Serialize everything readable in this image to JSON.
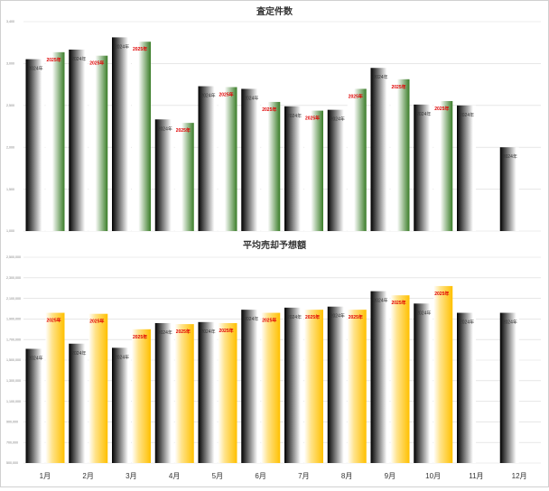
{
  "chart_data": [
    {
      "type": "bar",
      "title": "査定件数",
      "categories": [
        "1月",
        "2月",
        "3月",
        "4月",
        "5月",
        "6月",
        "7月",
        "8月",
        "9月",
        "10月",
        "11月",
        "12月"
      ],
      "yticks": [
        "3,400",
        "3,000",
        "2,500",
        "2,000",
        "1,500",
        "1,000"
      ],
      "ylim": [
        1000,
        3400
      ],
      "grid": true,
      "series": [
        {
          "name": "2024年",
          "color": "#000000",
          "values": [
            2970,
            3080,
            3220,
            2280,
            2660,
            2630,
            2430,
            2390,
            2870,
            2450,
            2440,
            1960
          ],
          "labels": [
            "2024年",
            "2024年",
            "2024年",
            "2024年",
            "2024年",
            "2024年",
            "2024年",
            "2024年",
            "2024年",
            "2024年",
            "2024年",
            "2024年"
          ]
        },
        {
          "name": "2025年",
          "color": "#3a7d28",
          "values": [
            3050,
            3010,
            3170,
            2240,
            2650,
            2480,
            2380,
            2630,
            2740,
            2490,
            null,
            null
          ],
          "labels": [
            "2025年",
            "2025年",
            "2025年",
            "2025年",
            "2025年",
            "2025年",
            "2025年",
            "2025年",
            "2025年",
            "2025年",
            "",
            ""
          ]
        }
      ]
    },
    {
      "type": "bar",
      "title": "平均売却予想額",
      "categories": [
        "1月",
        "2月",
        "3月",
        "4月",
        "5月",
        "6月",
        "7月",
        "8月",
        "9月",
        "10月",
        "11月",
        "12月"
      ],
      "yticks": [
        "2,500,000",
        "2,300,000",
        "2,100,000",
        "1,900,000",
        "1,700,000",
        "1,500,000",
        "1,300,000",
        "1,100,000",
        "900,000",
        "700,000",
        "500,000"
      ],
      "ylim": [
        500000,
        2500000
      ],
      "grid": true,
      "series": [
        {
          "name": "2024年",
          "color": "#000000",
          "values": [
            1610000,
            1660000,
            1620000,
            1860000,
            1870000,
            1990000,
            2010000,
            2020000,
            2170000,
            2050000,
            1960000,
            1960000
          ],
          "labels": [
            "2024年",
            "2024年",
            "2024年",
            "2024年",
            "2024年",
            "2024年",
            "2024年",
            "2024年",
            "2024年",
            "2024年",
            "2024年",
            "2024年"
          ]
        },
        {
          "name": "2025年",
          "color": "#ffc000",
          "values": [
            1960000,
            1950000,
            1800000,
            1850000,
            1860000,
            1960000,
            1990000,
            1990000,
            2130000,
            2220000,
            null,
            null
          ],
          "labels": [
            "2025年",
            "2025年",
            "2025年",
            "2025年",
            "2025年",
            "2025年",
            "2025年",
            "2025年",
            "2025年",
            "2025年",
            "",
            ""
          ]
        }
      ]
    }
  ]
}
